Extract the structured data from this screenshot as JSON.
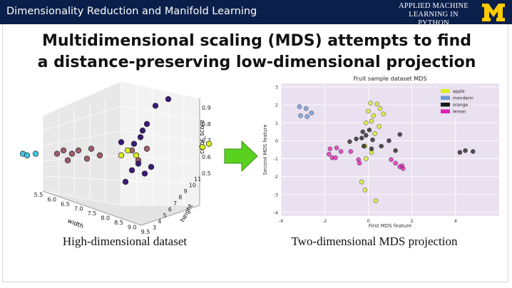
{
  "header": {
    "course_title": "Dimensionality Reduction and Manifold Learning",
    "brand_line1": "APPLIED MACHINE",
    "brand_line2": "LEARNING IN PYTHON",
    "logo_letter": "M",
    "logo_color": "#ffcb05",
    "background": "#0b1f4b"
  },
  "slide": {
    "title_line1": "Multidimensional scaling (MDS) attempts to find",
    "title_line2": "a distance-preserving low-dimensional projection",
    "caption_left": "High-dimensional dataset",
    "caption_right": "Two-dimensional MDS projection",
    "arrow_color": "#5ad11f"
  },
  "chart_data": [
    {
      "type": "scatter",
      "title": "",
      "xlabel": "width",
      "ylabel": "height",
      "zlabel": "color_score",
      "x_ticks": [
        "5.5",
        "6.0",
        "6.5",
        "7.0",
        "7.5",
        "8.0",
        "8.5",
        "9.0",
        "9.5"
      ],
      "y_ticks": [
        "3",
        "4",
        "5",
        "6",
        "7",
        "8",
        "9",
        "10",
        "11"
      ],
      "z_ticks": [
        "0.5",
        "0.6",
        "0.7",
        "0.8",
        "0.9"
      ],
      "grid": true,
      "colors": [
        "#3ec7e3",
        "#9e5f6a",
        "#d9f021",
        "#3b1a7a"
      ],
      "series": [
        {
          "values": [
            [
              0.04,
              0.52
            ],
            [
              0.06,
              0.53
            ],
            [
              0.1,
              0.52
            ]
          ]
        },
        {
          "values": [
            [
              0.2,
              0.52
            ],
            [
              0.23,
              0.5
            ],
            [
              0.25,
              0.56
            ],
            [
              0.27,
              0.52
            ],
            [
              0.3,
              0.5
            ],
            [
              0.34,
              0.55
            ],
            [
              0.36,
              0.49
            ],
            [
              0.4,
              0.53
            ],
            [
              0.55,
              0.5
            ],
            [
              0.58,
              0.56
            ],
            [
              0.62,
              0.49
            ]
          ]
        },
        {
          "values": [
            [
              0.5,
              0.53
            ],
            [
              0.53,
              0.5
            ],
            [
              0.57,
              0.53
            ],
            [
              0.88,
              0.48
            ],
            [
              0.91,
              0.46
            ]
          ]
        },
        {
          "values": [
            [
              0.52,
              0.69
            ],
            [
              0.55,
              0.62
            ],
            [
              0.58,
              0.58
            ],
            [
              0.61,
              0.64
            ],
            [
              0.64,
              0.6
            ],
            [
              0.56,
              0.46
            ],
            [
              0.59,
              0.42
            ],
            [
              0.6,
              0.38
            ],
            [
              0.62,
              0.34
            ],
            [
              0.66,
              0.23
            ],
            [
              0.72,
              0.19
            ],
            [
              0.5,
              0.45
            ]
          ]
        }
      ]
    },
    {
      "type": "scatter",
      "title": "Fruit sample dataset MDS",
      "xlabel": "First MDS feature",
      "ylabel": "Second MDS feature",
      "xlim": [
        -4,
        6
      ],
      "ylim": [
        -4.2,
        3.2
      ],
      "x_ticks": [
        "-4",
        "-2",
        "0",
        "2",
        "4"
      ],
      "y_ticks": [
        "3",
        "2",
        "1",
        "0",
        "-1",
        "-2",
        "-3",
        "-4"
      ],
      "grid": true,
      "legend_position": "top-right",
      "series": [
        {
          "name": "apple",
          "color": "#d9f021",
          "points": [
            [
              0.1,
              2.1
            ],
            [
              0.4,
              2.05
            ],
            [
              0.0,
              1.65
            ],
            [
              0.55,
              1.8
            ],
            [
              0.25,
              1.4
            ],
            [
              0.15,
              1.1
            ],
            [
              0.7,
              1.5
            ],
            [
              -0.1,
              1.0
            ],
            [
              0.3,
              0.4
            ],
            [
              0.5,
              0.8
            ],
            [
              -0.15,
              -0.3
            ],
            [
              0.15,
              -0.65
            ],
            [
              -0.1,
              -1.0
            ],
            [
              -0.3,
              -2.3
            ],
            [
              -0.15,
              -2.75
            ],
            [
              0.35,
              -3.35
            ]
          ]
        },
        {
          "name": "mandarin",
          "color": "#6b98d8",
          "points": [
            [
              -3.15,
              1.9
            ],
            [
              -2.85,
              1.8
            ],
            [
              -2.6,
              1.55
            ],
            [
              -3.1,
              1.4
            ],
            [
              -2.8,
              1.35
            ]
          ]
        },
        {
          "name": "orange",
          "color": "#1a1a1a",
          "points": [
            [
              -0.3,
              0.15
            ],
            [
              -0.1,
              0.3
            ],
            [
              0.05,
              0.6
            ],
            [
              -0.25,
              0.5
            ],
            [
              0.2,
              0.05
            ],
            [
              -0.55,
              0.1
            ],
            [
              -0.85,
              -0.05
            ],
            [
              -0.2,
              -0.3
            ],
            [
              0.15,
              -0.45
            ],
            [
              0.6,
              -0.3
            ],
            [
              0.95,
              0.0
            ],
            [
              1.45,
              0.35
            ],
            [
              1.25,
              -0.55
            ],
            [
              4.2,
              -0.65
            ],
            [
              4.45,
              -0.55
            ],
            [
              4.8,
              -0.6
            ]
          ]
        },
        {
          "name": "lemon",
          "color": "#e020b4",
          "points": [
            [
              -1.75,
              -0.45
            ],
            [
              -1.45,
              -0.4
            ],
            [
              -1.8,
              -0.75
            ],
            [
              -1.65,
              -0.95
            ],
            [
              -1.5,
              -0.95
            ],
            [
              -1.25,
              -0.6
            ],
            [
              -0.8,
              -0.6
            ],
            [
              -0.45,
              -1.05
            ],
            [
              -0.4,
              -1.25
            ],
            [
              1.05,
              -1.05
            ],
            [
              1.25,
              -1.25
            ],
            [
              1.45,
              -1.45
            ],
            [
              1.6,
              -1.55
            ],
            [
              1.55,
              -1.4
            ]
          ]
        }
      ]
    }
  ]
}
